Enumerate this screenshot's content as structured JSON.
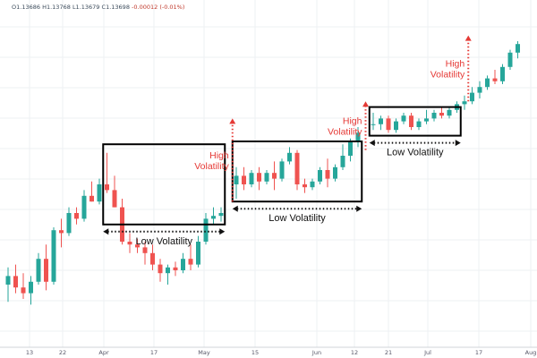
{
  "ohlc_readout": {
    "open": "O1.13686",
    "high": "H1.13768",
    "low": "L1.13679",
    "close": "C1.13698",
    "change": "-0.00012 (-0.01%)"
  },
  "chart_data": {
    "type": "candlestick",
    "title": "",
    "xlabel": "",
    "ylabel": "",
    "grid": true,
    "ylim": [
      0,
      100
    ],
    "x_tick_labels": [
      "13",
      "22",
      "Apr",
      "17",
      "May",
      "15",
      "Jun",
      "12",
      "21",
      "Jul",
      "17",
      "Aug"
    ],
    "colors": {
      "up": "#26a69a",
      "down": "#ef5350",
      "annotation": "#e53935",
      "box": "#000000"
    },
    "candles": [
      {
        "i": 0,
        "o": 15,
        "h": 21,
        "l": 9,
        "c": 18
      },
      {
        "i": 1,
        "o": 18,
        "h": 22,
        "l": 12,
        "c": 14
      },
      {
        "i": 2,
        "o": 14,
        "h": 19,
        "l": 10,
        "c": 12
      },
      {
        "i": 3,
        "o": 12,
        "h": 18,
        "l": 8,
        "c": 16
      },
      {
        "i": 4,
        "o": 16,
        "h": 26,
        "l": 15,
        "c": 24
      },
      {
        "i": 5,
        "o": 24,
        "h": 29,
        "l": 13,
        "c": 16
      },
      {
        "i": 6,
        "o": 16,
        "h": 35,
        "l": 15,
        "c": 34
      },
      {
        "i": 7,
        "o": 34,
        "h": 38,
        "l": 28,
        "c": 33
      },
      {
        "i": 8,
        "o": 33,
        "h": 42,
        "l": 32,
        "c": 40
      },
      {
        "i": 9,
        "o": 40,
        "h": 42,
        "l": 36,
        "c": 38
      },
      {
        "i": 10,
        "o": 38,
        "h": 48,
        "l": 37,
        "c": 46
      },
      {
        "i": 11,
        "o": 46,
        "h": 51,
        "l": 44,
        "c": 44
      },
      {
        "i": 12,
        "o": 44,
        "h": 52,
        "l": 43,
        "c": 50
      },
      {
        "i": 13,
        "o": 50,
        "h": 61,
        "l": 47,
        "c": 48
      },
      {
        "i": 14,
        "o": 48,
        "h": 53,
        "l": 42,
        "c": 42
      },
      {
        "i": 15,
        "o": 42,
        "h": 45,
        "l": 29,
        "c": 30
      },
      {
        "i": 16,
        "o": 30,
        "h": 33,
        "l": 26,
        "c": 29
      },
      {
        "i": 17,
        "o": 29,
        "h": 31,
        "l": 26,
        "c": 28
      },
      {
        "i": 18,
        "o": 28,
        "h": 30,
        "l": 22,
        "c": 26
      },
      {
        "i": 19,
        "o": 26,
        "h": 29,
        "l": 20,
        "c": 22
      },
      {
        "i": 20,
        "o": 22,
        "h": 24,
        "l": 16,
        "c": 19
      },
      {
        "i": 21,
        "o": 19,
        "h": 22,
        "l": 15,
        "c": 21
      },
      {
        "i": 22,
        "o": 21,
        "h": 23,
        "l": 18,
        "c": 20
      },
      {
        "i": 23,
        "o": 20,
        "h": 26,
        "l": 19,
        "c": 24
      },
      {
        "i": 24,
        "o": 24,
        "h": 29,
        "l": 20,
        "c": 22
      },
      {
        "i": 25,
        "o": 22,
        "h": 32,
        "l": 21,
        "c": 30
      },
      {
        "i": 26,
        "o": 30,
        "h": 40,
        "l": 29,
        "c": 38
      },
      {
        "i": 27,
        "o": 38,
        "h": 42,
        "l": 36,
        "c": 39
      },
      {
        "i": 28,
        "o": 39,
        "h": 42,
        "l": 37,
        "c": 40
      },
      {
        "i": 30,
        "o": 50,
        "h": 56,
        "l": 45,
        "c": 53
      },
      {
        "i": 31,
        "o": 53,
        "h": 56,
        "l": 48,
        "c": 50
      },
      {
        "i": 32,
        "o": 50,
        "h": 55,
        "l": 49,
        "c": 54
      },
      {
        "i": 33,
        "o": 54,
        "h": 56,
        "l": 48,
        "c": 51
      },
      {
        "i": 34,
        "o": 51,
        "h": 55,
        "l": 50,
        "c": 54
      },
      {
        "i": 35,
        "o": 54,
        "h": 58,
        "l": 48,
        "c": 52
      },
      {
        "i": 36,
        "o": 52,
        "h": 59,
        "l": 51,
        "c": 58
      },
      {
        "i": 37,
        "o": 58,
        "h": 63,
        "l": 57,
        "c": 61
      },
      {
        "i": 38,
        "o": 61,
        "h": 62,
        "l": 48,
        "c": 50
      },
      {
        "i": 39,
        "o": 50,
        "h": 52,
        "l": 47,
        "c": 49
      },
      {
        "i": 40,
        "o": 49,
        "h": 52,
        "l": 48,
        "c": 51
      },
      {
        "i": 41,
        "o": 51,
        "h": 56,
        "l": 50,
        "c": 55
      },
      {
        "i": 42,
        "o": 55,
        "h": 59,
        "l": 49,
        "c": 52
      },
      {
        "i": 43,
        "o": 52,
        "h": 57,
        "l": 51,
        "c": 56
      },
      {
        "i": 44,
        "o": 56,
        "h": 64,
        "l": 55,
        "c": 60
      },
      {
        "i": 45,
        "o": 60,
        "h": 66,
        "l": 58,
        "c": 65
      },
      {
        "i": 46,
        "o": 65,
        "h": 70,
        "l": 63,
        "c": 68
      },
      {
        "i": 48,
        "o": 71,
        "h": 75,
        "l": 69,
        "c": 71
      },
      {
        "i": 49,
        "o": 71,
        "h": 74,
        "l": 69,
        "c": 73
      },
      {
        "i": 50,
        "o": 73,
        "h": 74,
        "l": 68,
        "c": 69
      },
      {
        "i": 51,
        "o": 69,
        "h": 73,
        "l": 68,
        "c": 72
      },
      {
        "i": 52,
        "o": 72,
        "h": 75,
        "l": 71,
        "c": 74
      },
      {
        "i": 53,
        "o": 74,
        "h": 75,
        "l": 69,
        "c": 70
      },
      {
        "i": 54,
        "o": 70,
        "h": 73,
        "l": 69,
        "c": 72
      },
      {
        "i": 55,
        "o": 72,
        "h": 76,
        "l": 71,
        "c": 73
      },
      {
        "i": 56,
        "o": 73,
        "h": 76,
        "l": 72,
        "c": 75
      },
      {
        "i": 57,
        "o": 75,
        "h": 77,
        "l": 73,
        "c": 74
      },
      {
        "i": 58,
        "o": 74,
        "h": 77,
        "l": 73,
        "c": 76
      },
      {
        "i": 59,
        "o": 76,
        "h": 79,
        "l": 75,
        "c": 78
      },
      {
        "i": 60,
        "o": 78,
        "h": 81,
        "l": 76,
        "c": 79
      },
      {
        "i": 61,
        "o": 79,
        "h": 84,
        "l": 78,
        "c": 82
      },
      {
        "i": 62,
        "o": 82,
        "h": 86,
        "l": 80,
        "c": 84
      },
      {
        "i": 63,
        "o": 84,
        "h": 88,
        "l": 83,
        "c": 87
      },
      {
        "i": 64,
        "o": 87,
        "h": 90,
        "l": 85,
        "c": 86
      },
      {
        "i": 65,
        "o": 86,
        "h": 92,
        "l": 85,
        "c": 91
      },
      {
        "i": 66,
        "o": 91,
        "h": 97,
        "l": 90,
        "c": 96
      },
      {
        "i": 67,
        "o": 96,
        "h": 100,
        "l": 94,
        "c": 99
      }
    ],
    "boxes": [
      {
        "label": "Low Volatility",
        "i_start": 12.5,
        "i_end": 28.5,
        "y_low": 36,
        "y_high": 64
      },
      {
        "label": "Low Volatility",
        "i_start": 29.5,
        "i_end": 46.5,
        "y_low": 44,
        "y_high": 65
      },
      {
        "label": "Low Volatility",
        "i_start": 47.5,
        "i_end": 59.5,
        "y_low": 67,
        "y_high": 77
      }
    ],
    "annotations": [
      {
        "text": [
          "High",
          "Volatility"
        ],
        "i": 29.5,
        "y_from": 44,
        "y_to": 73
      },
      {
        "text": [
          "High",
          "Volatility"
        ],
        "i": 47.0,
        "y_from": 62,
        "y_to": 79
      },
      {
        "text": [
          "High",
          "Volatility"
        ],
        "i": 60.5,
        "y_from": 79,
        "y_to": 102
      }
    ]
  }
}
